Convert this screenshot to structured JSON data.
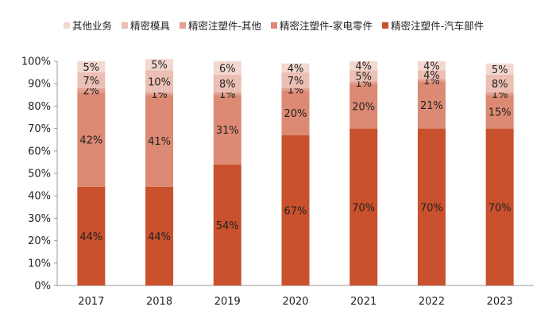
{
  "chart_data": {
    "type": "bar",
    "stacked": true,
    "title": "",
    "xlabel": "",
    "ylabel": "",
    "ylim": [
      0,
      100
    ],
    "yticks": [
      "0%",
      "10%",
      "20%",
      "30%",
      "40%",
      "50%",
      "60%",
      "70%",
      "80%",
      "90%",
      "100%"
    ],
    "categories": [
      "2017",
      "2018",
      "2019",
      "2020",
      "2021",
      "2022",
      "2023"
    ],
    "legend_position": "top",
    "series": [
      {
        "name": "精密注塑件-汽车部件",
        "color": "#c9512d",
        "values": [
          44,
          44,
          54,
          67,
          70,
          70,
          70
        ],
        "labels": [
          "44%",
          "44%",
          "54%",
          "67%",
          "70%",
          "70%",
          "70%"
        ]
      },
      {
        "name": "精密注塑件-家电零件",
        "color": "#dc8a73",
        "values": [
          42,
          41,
          31,
          20,
          20,
          21,
          15
        ],
        "labels": [
          "42%",
          "41%",
          "31%",
          "20%",
          "20%",
          "21%",
          "15%"
        ]
      },
      {
        "name": "精密注塑件-其他",
        "color": "#e3a090",
        "values": [
          2,
          1,
          1,
          1,
          1,
          1,
          1
        ],
        "labels": [
          "2%",
          "1%",
          "1%",
          "1%",
          "1%",
          "1%",
          "1%"
        ]
      },
      {
        "name": "精密模具",
        "color": "#ebbfb3",
        "values": [
          7,
          10,
          8,
          7,
          5,
          4,
          8
        ],
        "labels": [
          "7%",
          "10%",
          "8%",
          "7%",
          "5%",
          "4%",
          "8%"
        ]
      },
      {
        "name": "其他业务",
        "color": "#f3d8d0",
        "values": [
          5,
          5,
          6,
          4,
          4,
          4,
          5
        ],
        "labels": [
          "5%",
          "5%",
          "6%",
          "4%",
          "4%",
          "4%",
          "5%"
        ]
      }
    ]
  },
  "legend": [
    {
      "label": "其他业务",
      "color": "#f3d8d0"
    },
    {
      "label": "精密模具",
      "color": "#ebbfb3"
    },
    {
      "label": "精密注塑件-其他",
      "color": "#e3a090"
    },
    {
      "label": "精密注塑件-家电零件",
      "color": "#dc8a73"
    },
    {
      "label": "精密注塑件-汽车部件",
      "color": "#c9512d"
    }
  ]
}
